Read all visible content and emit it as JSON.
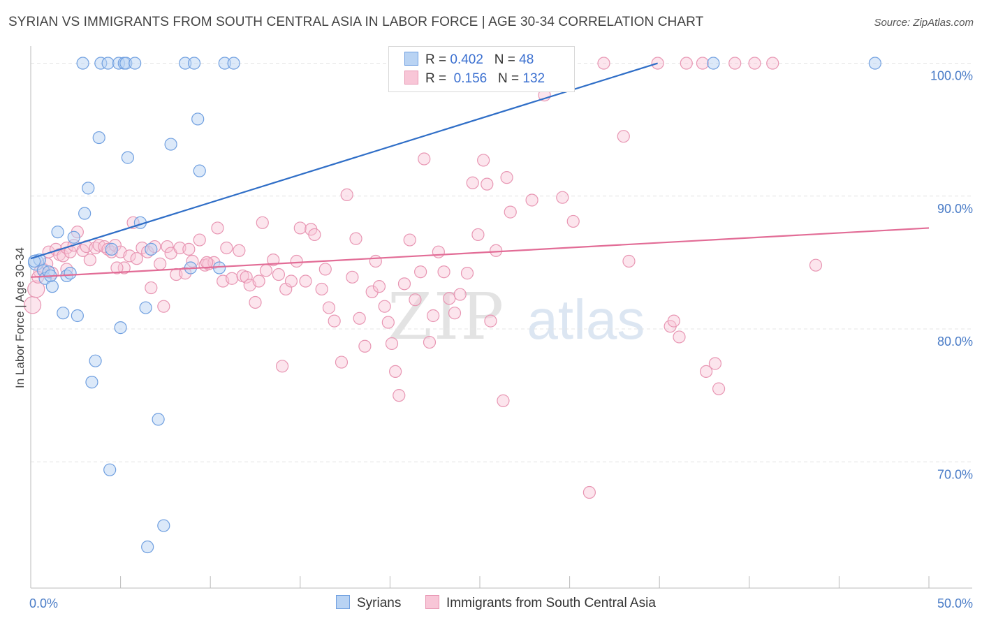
{
  "header": {
    "title": "SYRIAN VS IMMIGRANTS FROM SOUTH CENTRAL ASIA IN LABOR FORCE | AGE 30-34 CORRELATION CHART",
    "source": "Source: ZipAtlas.com"
  },
  "watermark": {
    "zip": "ZIP",
    "atlas": "atlas"
  },
  "legend": {
    "rows": [
      {
        "r_label": "R = ",
        "r_value": "0.402",
        "n_label": "N = ",
        "n_value": "48"
      },
      {
        "r_label": "R = ",
        "r_value": " 0.156",
        "n_label": "N = ",
        "n_value": "132"
      }
    ]
  },
  "bottom_legend": {
    "items": [
      "Syrians",
      "Immigrants from South Central Asia"
    ]
  },
  "colors": {
    "syrians_fill": "#b9d3f3",
    "syrians_stroke": "#6f9fe0",
    "syrians_line": "#2f6ec7",
    "sca_fill": "#f8c6d7",
    "sca_stroke": "#e896b3",
    "sca_line": "#e26c96",
    "tick_text": "#4a7cc7",
    "grid": "#e4e4e4"
  },
  "chart_data": {
    "type": "scatter",
    "title": "SYRIAN VS IMMIGRANTS FROM SOUTH CENTRAL ASIA IN LABOR FORCE | AGE 30-34 CORRELATION CHART",
    "xlabel": "",
    "ylabel": "In Labor Force | Age 30-34",
    "xlim": [
      0,
      50
    ],
    "ylim": [
      60.5,
      101.5
    ],
    "x_tick_labels": [
      "0.0%",
      "50.0%"
    ],
    "y_ticks": [
      70,
      80,
      90,
      100
    ],
    "y_tick_labels": [
      "70.0%",
      "80.0%",
      "90.0%",
      "100.0%"
    ],
    "grid": "horizontal dashed",
    "legend_position": "top-center",
    "series": [
      {
        "name": "Syrians",
        "r": 0.402,
        "n": 48,
        "trend": {
          "x": [
            0.0,
            34.9
          ],
          "y": [
            85.3,
            100.0
          ]
        },
        "points": [
          [
            0.3,
            85.0
          ],
          [
            0.5,
            85.2
          ],
          [
            0.7,
            84.4
          ],
          [
            0.8,
            83.8
          ],
          [
            1.0,
            84.3
          ],
          [
            1.2,
            83.2
          ],
          [
            1.5,
            87.3
          ],
          [
            1.8,
            81.2
          ],
          [
            2.0,
            84.0
          ],
          [
            2.2,
            84.2
          ],
          [
            2.4,
            86.9
          ],
          [
            2.6,
            81.0
          ],
          [
            2.9,
            100.0
          ],
          [
            3.0,
            88.7
          ],
          [
            3.2,
            90.6
          ],
          [
            3.4,
            76.0
          ],
          [
            3.6,
            77.6
          ],
          [
            3.8,
            94.4
          ],
          [
            3.9,
            100.0
          ],
          [
            4.3,
            100.0
          ],
          [
            4.5,
            86.0
          ],
          [
            4.4,
            69.4
          ],
          [
            4.9,
            100.0
          ],
          [
            5.0,
            80.1
          ],
          [
            5.2,
            100.0
          ],
          [
            5.3,
            100.0
          ],
          [
            5.4,
            92.9
          ],
          [
            5.8,
            100.0
          ],
          [
            6.1,
            88.0
          ],
          [
            6.4,
            81.6
          ],
          [
            6.5,
            63.6
          ],
          [
            6.7,
            86.0
          ],
          [
            7.1,
            73.2
          ],
          [
            7.4,
            65.2
          ],
          [
            7.8,
            93.9
          ],
          [
            8.6,
            100.0
          ],
          [
            8.9,
            84.6
          ],
          [
            9.1,
            100.0
          ],
          [
            9.3,
            95.8
          ],
          [
            9.4,
            91.9
          ],
          [
            10.5,
            84.6
          ],
          [
            10.8,
            100.0
          ],
          [
            11.3,
            100.0
          ],
          [
            28.1,
            100.0
          ],
          [
            38.0,
            100.0
          ],
          [
            47.0,
            100.0
          ],
          [
            0.2,
            85.1
          ],
          [
            1.1,
            84.0
          ]
        ]
      },
      {
        "name": "Immigrants from South Central Asia",
        "r": 0.156,
        "n": 132,
        "trend": {
          "x": [
            0.0,
            50.0
          ],
          "y": [
            83.9,
            87.6
          ]
        },
        "points": [
          [
            0.1,
            81.8
          ],
          [
            0.3,
            83.0
          ],
          [
            0.5,
            84.3
          ],
          [
            0.7,
            84.5
          ],
          [
            0.9,
            84.9
          ],
          [
            1.0,
            85.8
          ],
          [
            1.2,
            84.2
          ],
          [
            1.4,
            86.0
          ],
          [
            1.6,
            85.6
          ],
          [
            1.8,
            85.5
          ],
          [
            2.0,
            86.1
          ],
          [
            2.2,
            85.8
          ],
          [
            2.4,
            86.3
          ],
          [
            2.6,
            87.3
          ],
          [
            2.9,
            85.9
          ],
          [
            3.1,
            86.2
          ],
          [
            3.3,
            85.2
          ],
          [
            3.6,
            86.1
          ],
          [
            3.8,
            86.3
          ],
          [
            4.1,
            86.2
          ],
          [
            4.3,
            86.0
          ],
          [
            4.5,
            85.8
          ],
          [
            4.7,
            86.3
          ],
          [
            5.0,
            85.8
          ],
          [
            5.2,
            84.6
          ],
          [
            5.5,
            85.5
          ],
          [
            5.7,
            88.0
          ],
          [
            5.9,
            85.3
          ],
          [
            6.2,
            86.1
          ],
          [
            6.5,
            85.8
          ],
          [
            6.7,
            83.1
          ],
          [
            6.9,
            86.2
          ],
          [
            7.2,
            84.9
          ],
          [
            7.4,
            81.7
          ],
          [
            7.6,
            86.2
          ],
          [
            7.8,
            85.7
          ],
          [
            8.1,
            84.1
          ],
          [
            8.3,
            86.1
          ],
          [
            8.6,
            84.2
          ],
          [
            8.8,
            86.0
          ],
          [
            9.0,
            85.1
          ],
          [
            9.4,
            86.7
          ],
          [
            9.7,
            84.8
          ],
          [
            9.9,
            84.9
          ],
          [
            10.2,
            85.0
          ],
          [
            10.4,
            87.6
          ],
          [
            10.7,
            83.6
          ],
          [
            10.9,
            86.1
          ],
          [
            11.2,
            83.8
          ],
          [
            11.6,
            85.9
          ],
          [
            11.8,
            84.0
          ],
          [
            12.0,
            83.9
          ],
          [
            12.2,
            83.3
          ],
          [
            12.5,
            82.0
          ],
          [
            12.7,
            83.6
          ],
          [
            12.9,
            88.0
          ],
          [
            13.1,
            84.4
          ],
          [
            13.5,
            85.2
          ],
          [
            13.8,
            84.1
          ],
          [
            14.0,
            77.2
          ],
          [
            14.2,
            83.0
          ],
          [
            14.5,
            83.6
          ],
          [
            14.8,
            85.1
          ],
          [
            15.0,
            87.6
          ],
          [
            15.3,
            83.6
          ],
          [
            15.6,
            87.5
          ],
          [
            15.8,
            87.1
          ],
          [
            16.2,
            83.0
          ],
          [
            16.4,
            84.5
          ],
          [
            16.6,
            81.6
          ],
          [
            16.9,
            80.6
          ],
          [
            17.3,
            77.5
          ],
          [
            17.6,
            90.1
          ],
          [
            17.9,
            83.9
          ],
          [
            18.1,
            86.8
          ],
          [
            18.3,
            80.8
          ],
          [
            18.6,
            78.7
          ],
          [
            19.0,
            82.8
          ],
          [
            19.2,
            85.1
          ],
          [
            19.4,
            83.2
          ],
          [
            19.7,
            81.7
          ],
          [
            19.9,
            80.5
          ],
          [
            20.1,
            78.9
          ],
          [
            20.3,
            76.8
          ],
          [
            20.5,
            75.0
          ],
          [
            20.8,
            83.4
          ],
          [
            21.1,
            86.7
          ],
          [
            21.4,
            82.2
          ],
          [
            21.7,
            84.3
          ],
          [
            21.9,
            92.8
          ],
          [
            22.2,
            79.0
          ],
          [
            22.4,
            81.0
          ],
          [
            22.7,
            85.8
          ],
          [
            23.0,
            84.3
          ],
          [
            23.3,
            82.3
          ],
          [
            23.6,
            81.2
          ],
          [
            23.9,
            82.6
          ],
          [
            24.3,
            84.2
          ],
          [
            24.6,
            91.0
          ],
          [
            24.9,
            87.1
          ],
          [
            25.2,
            92.7
          ],
          [
            25.4,
            90.9
          ],
          [
            25.6,
            80.6
          ],
          [
            25.9,
            85.9
          ],
          [
            26.3,
            74.6
          ],
          [
            26.5,
            91.4
          ],
          [
            26.7,
            88.8
          ],
          [
            27.9,
            89.7
          ],
          [
            28.6,
            97.6
          ],
          [
            29.6,
            89.9
          ],
          [
            30.2,
            88.1
          ],
          [
            31.1,
            67.7
          ],
          [
            31.9,
            100.0
          ],
          [
            33.0,
            94.5
          ],
          [
            33.3,
            85.1
          ],
          [
            34.9,
            100.0
          ],
          [
            35.6,
            80.2
          ],
          [
            35.8,
            80.6
          ],
          [
            36.1,
            79.4
          ],
          [
            36.5,
            100.0
          ],
          [
            37.4,
            100.0
          ],
          [
            37.6,
            76.8
          ],
          [
            38.1,
            77.4
          ],
          [
            38.3,
            75.5
          ],
          [
            39.2,
            100.0
          ],
          [
            40.3,
            100.0
          ],
          [
            41.3,
            100.0
          ],
          [
            43.7,
            84.8
          ],
          [
            2.0,
            84.5
          ],
          [
            4.8,
            84.6
          ],
          [
            9.8,
            85.0
          ],
          [
            0.4,
            83.9
          ]
        ]
      }
    ]
  }
}
